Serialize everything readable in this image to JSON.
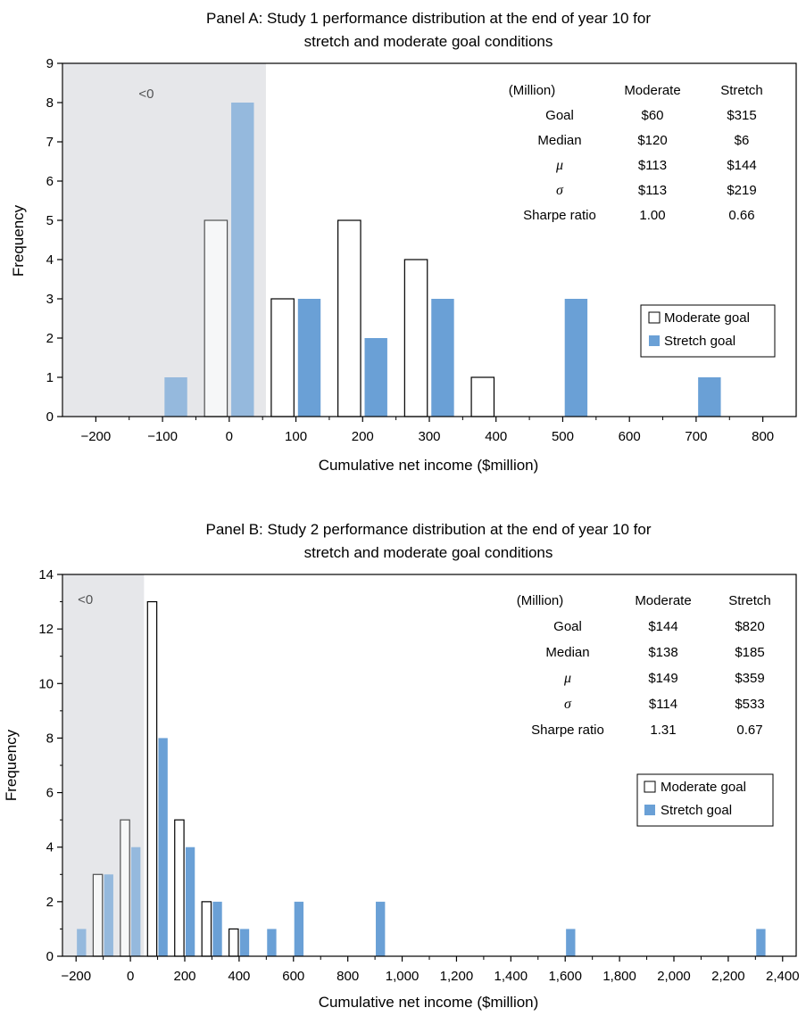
{
  "colors": {
    "moderate_fill": "#ffffff",
    "moderate_stroke": "#000000",
    "stretch_fill": "#6aa0d6",
    "negative_region": "#e6e7ea"
  },
  "chart_data": [
    {
      "type": "bar",
      "title_line1": "Panel A: Study 1 performance distribution at the end of year 10 for",
      "title_line2": "stretch and moderate goal conditions",
      "xlabel": "Cumulative net income ($million)",
      "ylabel": "Frequency",
      "xlim": [
        -250,
        850
      ],
      "ylim": [
        0,
        9
      ],
      "yticks": [
        0,
        1,
        2,
        3,
        4,
        5,
        6,
        7,
        8,
        9
      ],
      "xticks": [
        -200,
        -100,
        0,
        100,
        200,
        300,
        400,
        500,
        600,
        700,
        800
      ],
      "xtick_labels": [
        "−200",
        "−100",
        "0",
        "100",
        "200",
        "300",
        "400",
        "500",
        "600",
        "700",
        "800"
      ],
      "negative_region": {
        "label": "<0",
        "x_end": 55
      },
      "bar_width": 34,
      "series": [
        {
          "name": "Moderate goal",
          "x": [
            -20,
            80,
            180,
            280,
            380
          ],
          "values": [
            5,
            3,
            5,
            4,
            1
          ]
        },
        {
          "name": "Stretch goal",
          "x": [
            -80,
            20,
            120,
            220,
            320,
            520,
            720
          ],
          "values": [
            1,
            8,
            3,
            2,
            3,
            3,
            1
          ]
        }
      ],
      "legend": {
        "position": "right",
        "items": [
          "Moderate goal",
          "Stretch goal"
        ]
      },
      "stats_table": {
        "header": [
          "(Million)",
          "Moderate",
          "Stretch"
        ],
        "rows": [
          [
            "Goal",
            "$60",
            "$315"
          ],
          [
            "Median",
            "$120",
            "$6"
          ],
          [
            "μ",
            "$113",
            "$144"
          ],
          [
            "σ",
            "$113",
            "$219"
          ],
          [
            "Sharpe ratio",
            "1.00",
            "0.66"
          ]
        ]
      }
    },
    {
      "type": "bar",
      "title_line1": "Panel B: Study 2 performance distribution at the end of year 10 for",
      "title_line2": "stretch and moderate goal conditions",
      "xlabel": "Cumulative net income ($million)",
      "ylabel": "Frequency",
      "xlim": [
        -250,
        2450
      ],
      "ylim": [
        0,
        14
      ],
      "yticks": [
        0,
        2,
        4,
        6,
        8,
        10,
        12,
        14
      ],
      "xticks": [
        -200,
        0,
        200,
        400,
        600,
        800,
        1000,
        1200,
        1400,
        1600,
        1800,
        2000,
        2200,
        2400
      ],
      "xtick_labels": [
        "−200",
        "0",
        "200",
        "400",
        "600",
        "800",
        "1,000",
        "1,200",
        "1,400",
        "1,600",
        "1,800",
        "2,000",
        "2,200",
        "2,400"
      ],
      "negative_region": {
        "label": "<0",
        "x_end": 50
      },
      "bar_width": 34,
      "series": [
        {
          "name": "Moderate goal",
          "x": [
            -120,
            -20,
            80,
            180,
            280,
            380
          ],
          "values": [
            3,
            5,
            13,
            5,
            2,
            1
          ]
        },
        {
          "name": "Stretch goal",
          "x": [
            -180,
            -80,
            20,
            120,
            220,
            320,
            420,
            520,
            620,
            920,
            1620,
            2320
          ],
          "values": [
            1,
            3,
            4,
            8,
            4,
            2,
            1,
            1,
            2,
            2,
            1,
            1
          ]
        }
      ],
      "legend": {
        "position": "right",
        "items": [
          "Moderate goal",
          "Stretch goal"
        ]
      },
      "stats_table": {
        "header": [
          "(Million)",
          "Moderate",
          "Stretch"
        ],
        "rows": [
          [
            "Goal",
            "$144",
            "$820"
          ],
          [
            "Median",
            "$138",
            "$185"
          ],
          [
            "μ",
            "$149",
            "$359"
          ],
          [
            "σ",
            "$114",
            "$533"
          ],
          [
            "Sharpe ratio",
            "1.31",
            "0.67"
          ]
        ]
      }
    }
  ]
}
